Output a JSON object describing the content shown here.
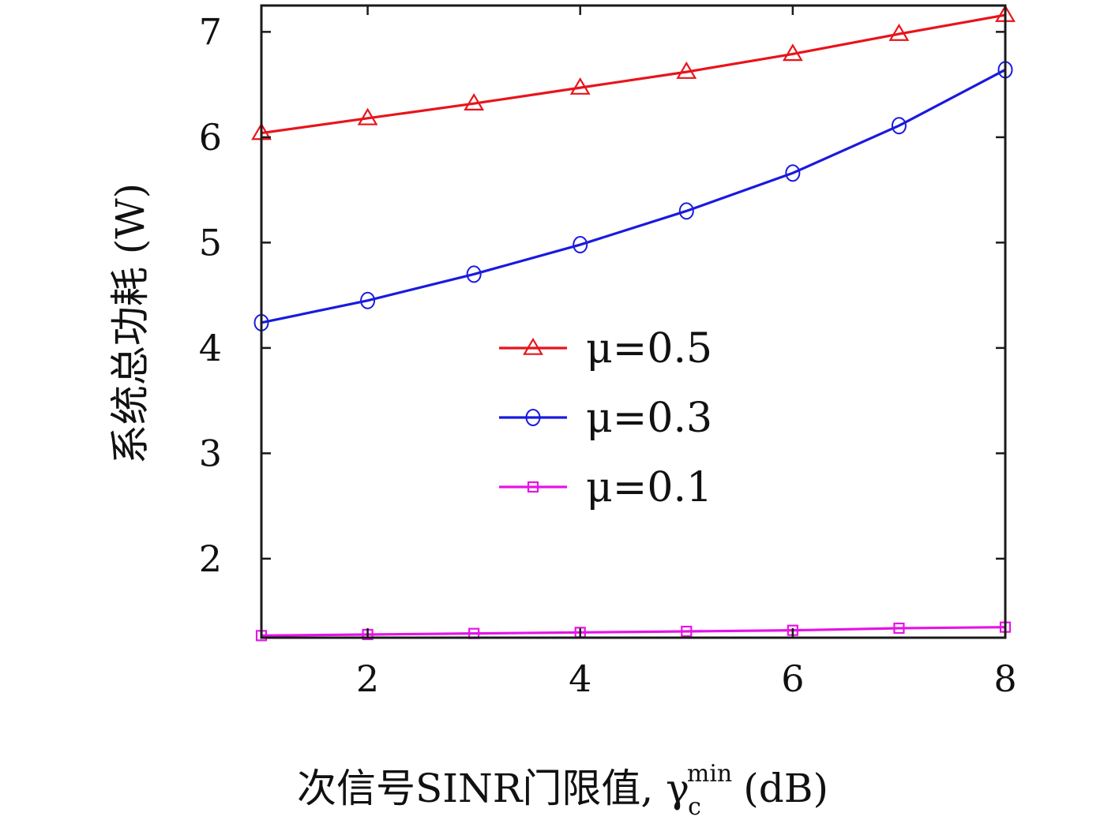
{
  "chart_data": {
    "type": "line",
    "xlabel_main": "次信号SINR门限值, γ",
    "xlabel_sub": "c",
    "xlabel_sup": "min",
    "xlabel_unit": "(dB)",
    "ylabel": "系统总功耗 (W)",
    "xlim": [
      1,
      8
    ],
    "ylim": [
      1.25,
      7.25
    ],
    "xticks": [
      2,
      4,
      6,
      8
    ],
    "yticks": [
      2,
      3,
      4,
      5,
      6,
      7
    ],
    "grid": false,
    "legend_position": "center",
    "x": [
      1,
      2,
      3,
      4,
      5,
      6,
      7,
      8
    ],
    "series": [
      {
        "name": "μ=0.5",
        "marker": "triangle",
        "color": "#e8141b",
        "values": [
          6.04,
          6.18,
          6.32,
          6.47,
          6.62,
          6.79,
          6.98,
          7.16
        ]
      },
      {
        "name": "μ=0.3",
        "marker": "circle",
        "color": "#1a1adf",
        "values": [
          4.24,
          4.45,
          4.7,
          4.98,
          5.3,
          5.66,
          6.11,
          6.64
        ]
      },
      {
        "name": "μ=0.1",
        "marker": "square",
        "color": "#e614e6",
        "values": [
          1.27,
          1.28,
          1.29,
          1.3,
          1.31,
          1.32,
          1.34,
          1.35
        ]
      }
    ]
  }
}
